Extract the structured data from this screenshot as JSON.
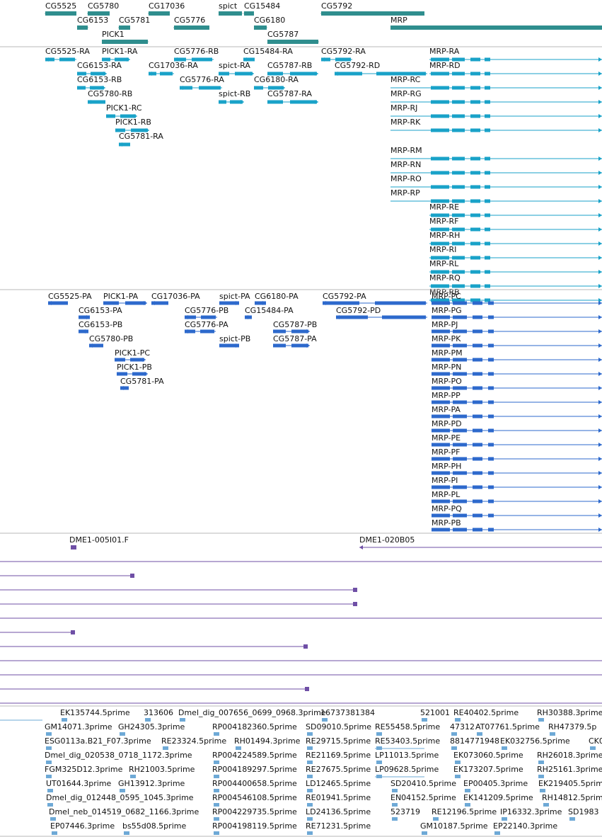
{
  "colors": {
    "gene": "#2f8e8e",
    "transcript": "#19a2c8",
    "protein": "#2d69cc",
    "clone": "#6f4fa6",
    "est": "#6ea9d6",
    "divider": "#b9b9b9"
  },
  "tracks": {
    "genes": [
      {
        "label": "CG5525",
        "strand": "-"
      },
      {
        "label": "CG5780",
        "strand": "-"
      },
      {
        "label": "CG17036",
        "strand": "-"
      },
      {
        "label": "spict",
        "strand": "+"
      },
      {
        "label": "CG15484",
        "strand": "-"
      },
      {
        "label": "CG5792",
        "strand": "-"
      },
      {
        "label": "CG6153",
        "strand": "+"
      },
      {
        "label": "CG5781",
        "strand": "-"
      },
      {
        "label": "CG5776",
        "strand": "-"
      },
      {
        "label": "CG6180",
        "strand": "+"
      },
      {
        "label": "MRP",
        "strand": "+"
      },
      {
        "label": "PICK1",
        "strand": "+"
      },
      {
        "label": "CG5787",
        "strand": "+"
      }
    ],
    "transcripts": [
      "CG5525-RA",
      "PICK1-RA",
      "CG5776-RB",
      "CG15484-RA",
      "CG5792-RA",
      "MRP-RA",
      "CG6153-RA",
      "CG17036-RA",
      "spict-RA",
      "CG5787-RB",
      "CG5792-RD",
      "MRP-RD",
      "CG6153-RB",
      "CG5776-RA",
      "CG6180-RA",
      "MRP-RC",
      "CG5780-RB",
      "spict-RB",
      "CG5787-RA",
      "MRP-RG",
      "PICK1-RC",
      "MRP-RJ",
      "PICK1-RB",
      "MRP-RK",
      "CG5781-RA",
      "MRP-RM",
      "MRP-RN",
      "MRP-RO",
      "MRP-RP",
      "MRP-RE",
      "MRP-RF",
      "MRP-RH",
      "MRP-RI",
      "MRP-RL",
      "MRP-RQ",
      "MRP-RB"
    ],
    "proteins": [
      "CG5525-PA",
      "PICK1-PA",
      "CG17036-PA",
      "spict-PA",
      "CG6180-PA",
      "CG5792-PA",
      "MRP-PC",
      "CG6153-PA",
      "CG5776-PB",
      "CG15484-PA",
      "CG5792-PD",
      "MRP-PG",
      "CG6153-PB",
      "CG5776-PA",
      "CG5787-PB",
      "MRP-PJ",
      "CG5780-PB",
      "spict-PB",
      "CG5787-PA",
      "MRP-PK",
      "PICK1-PC",
      "MRP-PM",
      "PICK1-PB",
      "MRP-PN",
      "CG5781-PA",
      "MRP-PO",
      "MRP-PP",
      "MRP-PA",
      "MRP-PD",
      "MRP-PE",
      "MRP-PF",
      "MRP-PH",
      "MRP-PI",
      "MRP-PL",
      "MRP-PQ",
      "MRP-PB"
    ],
    "clones": [
      "DME1-005I01.F",
      "DME1-020B05"
    ],
    "ests": [
      "EK135744.5prime",
      "313606",
      "Dmel_dig_007656_0699_0968.3prime",
      "16737381384",
      "521001",
      "RE40402.5prime",
      "RH30388.3prime",
      "GM14071.3prime",
      "GH24305.3prime",
      "RP004182360.5prime",
      "SD09010.5prime",
      "RE55458.5prime",
      "47312",
      "AT07761.5prime",
      "RH47379.5p",
      "ESG0113a.B21_F07.3prime",
      "RE23324.5prime",
      "RH01494.3prime",
      "RE29715.5prime",
      "RE53403.5prime",
      "8814771948",
      "EK032756.5prime",
      "CK0",
      "Dmel_dig_020538_0718_1172.3prime",
      "RP004224589.5prime",
      "RE21169.5prime",
      "LP11013.5prime",
      "EK073060.5prime",
      "RH26018.3prime",
      "FGM325D12.3prime",
      "RH21003.5prime",
      "RP004189297.5prime",
      "RE27675.5prime",
      "LP09628.5prime",
      "EK173207.5prime",
      "RH25161.3prime",
      "UT01644.3prime",
      "GH13912.3prime",
      "RP004400658.5prime",
      "LD12465.5prime",
      "SD20410.5prime",
      "EP00405.3prime",
      "EK219405.5prime",
      "Dmel_dig_012448_0595_1045.3prime",
      "RP004546108.5prime",
      "RE01941.5prime",
      "EN04152.5prime",
      "EK141209.5prime",
      "RH14812.5prime",
      "Dmel_neb_014519_0682_1166.3prime",
      "RP004229735.5prime",
      "LD24136.5prime",
      "523719",
      "RE12196.5prime",
      "IP16332.3prime",
      "SD1983",
      "EP07446.3prime",
      "bs55d08.5prime",
      "RP004198119.5prime",
      "RE71231.5prime",
      "GM10187.5prime",
      "EP22140.3prime"
    ]
  }
}
